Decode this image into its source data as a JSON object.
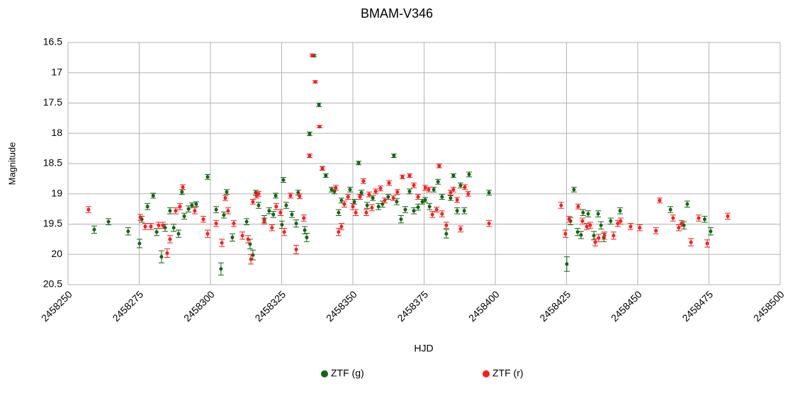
{
  "chart_data": {
    "type": "scatter",
    "title": "BMAM-V346",
    "xlabel": "HJD",
    "ylabel": "Magnitude",
    "xlim": [
      2458250,
      2458500
    ],
    "xticks": [
      2458250,
      2458275,
      2458300,
      2458325,
      2458350,
      2458375,
      2458400,
      2458425,
      2458450,
      2458475,
      2458500
    ],
    "ylim": [
      16.5,
      20.5
    ],
    "yticks": [
      16.5,
      17.0,
      17.5,
      18.0,
      18.5,
      19.0,
      19.5,
      20.0,
      20.5
    ],
    "y_inverted": true,
    "grid": true,
    "legend": "bottom",
    "series": [
      {
        "name": "ZTF (g)",
        "color": "#116611",
        "x": [
          2458259.2,
          2458264.2,
          2458271.1,
          2458275.1,
          2458275.9,
          2458277.9,
          2458279.9,
          2458281.1,
          2458282.8,
          2458284.1,
          2458285.8,
          2458287.1,
          2458288.8,
          2458290.0,
          2458290.8,
          2458292.3,
          2458293.5,
          2458295.0,
          2458299.0,
          2458302.0,
          2458303.7,
          2458304.7,
          2458305.7,
          2458307.7,
          2458312.7,
          2458313.9,
          2458314.9,
          2458315.9,
          2458316.9,
          2458318.9,
          2458320.6,
          2458322.1,
          2458322.9,
          2458325.1,
          2458325.6,
          2458326.6,
          2458328.6,
          2458330.1,
          2458330.8,
          2458333.1,
          2458333.8,
          2458334.8,
          2458336.3,
          2458338.1,
          2458339.3,
          2458340.5,
          2458342.5,
          2458343.5,
          2458345.0,
          2458346.0,
          2458347.0,
          2458349.0,
          2458350.5,
          2458352.0,
          2458353.0,
          2458355.0,
          2458357.0,
          2458359.0,
          2458360.4,
          2458362.4,
          2458364.4,
          2458365.4,
          2458366.9,
          2458368.4,
          2458369.9,
          2458371.4,
          2458372.9,
          2458374.4,
          2458375.4,
          2458376.9,
          2458378.4,
          2458379.9,
          2458381.3,
          2458382.8,
          2458384.3,
          2458385.3,
          2458386.6,
          2458387.8,
          2458389.1,
          2458390.8,
          2458397.8,
          2458425.1,
          2458426.4,
          2458427.6,
          2458428.9,
          2458430.1,
          2458430.8,
          2458432.6,
          2458434.6,
          2458436.1,
          2458437.1,
          2458438.1,
          2458440.5,
          2458443.8,
          2458461.5,
          2458466.2,
          2458467.4,
          2458473.5,
          2458475.6
        ],
        "values": [
          19.59,
          19.46,
          19.62,
          19.82,
          19.42,
          19.21,
          19.03,
          19.63,
          20.04,
          19.56,
          19.28,
          19.56,
          19.66,
          18.97,
          19.37,
          19.25,
          19.19,
          19.17,
          18.72,
          19.26,
          20.24,
          19.35,
          18.97,
          19.72,
          19.46,
          19.83,
          20.01,
          18.98,
          19.19,
          19.42,
          19.28,
          19.34,
          19.03,
          19.51,
          18.77,
          19.19,
          19.34,
          19.49,
          18.98,
          19.6,
          19.72,
          18.01,
          16.72,
          17.53,
          18.58,
          18.7,
          18.93,
          18.96,
          19.31,
          19.11,
          19.17,
          18.93,
          19.13,
          18.49,
          18.98,
          19.19,
          19.07,
          19.21,
          19.17,
          19.05,
          18.37,
          19.13,
          19.42,
          19.26,
          18.96,
          19.28,
          19.22,
          19.13,
          19.1,
          19.21,
          18.93,
          18.8,
          19.05,
          19.66,
          19.07,
          18.7,
          19.28,
          18.86,
          19.28,
          18.68,
          18.98,
          20.16,
          19.45,
          18.93,
          19.63,
          19.68,
          19.31,
          19.33,
          19.69,
          19.33,
          19.52,
          19.72,
          19.45,
          19.28,
          19.26,
          19.52,
          19.17,
          19.42,
          19.62
        ],
        "errors": [
          0.06,
          0.05,
          0.06,
          0.07,
          0.05,
          0.05,
          0.04,
          0.06,
          0.1,
          0.06,
          0.05,
          0.06,
          0.06,
          0.04,
          0.05,
          0.05,
          0.04,
          0.04,
          0.04,
          0.05,
          0.1,
          0.05,
          0.04,
          0.06,
          0.05,
          0.08,
          0.08,
          0.04,
          0.05,
          0.06,
          0.05,
          0.05,
          0.04,
          0.06,
          0.04,
          0.05,
          0.05,
          0.06,
          0.04,
          0.06,
          0.07,
          0.03,
          0.02,
          0.03,
          0.03,
          0.03,
          0.04,
          0.04,
          0.05,
          0.04,
          0.05,
          0.04,
          0.04,
          0.03,
          0.04,
          0.05,
          0.04,
          0.05,
          0.05,
          0.04,
          0.03,
          0.05,
          0.06,
          0.05,
          0.04,
          0.05,
          0.05,
          0.04,
          0.04,
          0.05,
          0.04,
          0.04,
          0.04,
          0.07,
          0.04,
          0.03,
          0.05,
          0.04,
          0.05,
          0.04,
          0.04,
          0.12,
          0.06,
          0.04,
          0.06,
          0.06,
          0.05,
          0.05,
          0.07,
          0.05,
          0.06,
          0.07,
          0.05,
          0.05,
          0.05,
          0.06,
          0.05,
          0.05,
          0.06
        ]
      },
      {
        "name": "ZTF (r)",
        "color": "#ff1a1a",
        "x": [
          2458257.2,
          2458275.4,
          2458277.1,
          2458279.1,
          2458281.8,
          2458283.3,
          2458284.8,
          2458285.8,
          2458287.8,
          2458289.3,
          2458290.3,
          2458294.5,
          2458297.5,
          2458299.0,
          2458302.0,
          2458304.0,
          2458305.2,
          2458306.2,
          2458308.2,
          2458311.2,
          2458313.2,
          2458314.2,
          2458314.9,
          2458316.2,
          2458316.9,
          2458318.9,
          2458321.6,
          2458323.1,
          2458324.6,
          2458325.9,
          2458328.1,
          2458330.1,
          2458331.3,
          2458332.8,
          2458334.8,
          2458335.8,
          2458336.8,
          2458338.3,
          2458339.3,
          2458344.0,
          2458345.0,
          2458346.0,
          2458347.0,
          2458348.3,
          2458350.0,
          2458351.0,
          2458352.5,
          2458353.7,
          2458354.7,
          2458355.7,
          2458356.7,
          2458358.0,
          2458359.7,
          2458361.2,
          2458362.7,
          2458364.2,
          2458365.6,
          2458367.4,
          2458369.9,
          2458371.4,
          2458372.9,
          2458375.4,
          2458376.6,
          2458377.9,
          2458379.4,
          2458380.3,
          2458381.3,
          2458382.8,
          2458384.3,
          2458385.3,
          2458386.6,
          2458387.8,
          2458389.3,
          2458390.5,
          2458397.8,
          2458423.1,
          2458424.6,
          2458425.9,
          2458429.1,
          2458430.6,
          2458432.1,
          2458433.3,
          2458435.1,
          2458436.3,
          2458438.3,
          2458441.5,
          2458443.0,
          2458444.0,
          2458447.5,
          2458450.7,
          2458456.4,
          2458457.7,
          2458462.4,
          2458464.4,
          2458465.4,
          2458468.7,
          2458471.4,
          2458474.4,
          2458481.6
        ],
        "values": [
          19.26,
          19.39,
          19.54,
          19.54,
          19.52,
          19.52,
          19.98,
          19.75,
          19.28,
          19.21,
          18.89,
          19.28,
          19.42,
          19.66,
          19.49,
          19.81,
          19.07,
          19.28,
          19.49,
          19.69,
          19.75,
          20.08,
          19.13,
          19.03,
          19.0,
          19.45,
          19.56,
          19.21,
          19.31,
          19.63,
          19.03,
          19.92,
          19.04,
          19.4,
          18.37,
          16.71,
          17.15,
          17.89,
          18.58,
          18.9,
          19.63,
          19.54,
          19.17,
          19.05,
          19.21,
          19.31,
          19.05,
          18.79,
          19.31,
          19.01,
          19.23,
          18.96,
          18.91,
          19.11,
          18.82,
          19.07,
          18.97,
          18.72,
          18.7,
          18.86,
          19.05,
          18.9,
          18.93,
          19.34,
          19.26,
          18.54,
          19.33,
          19.52,
          18.98,
          18.93,
          19.1,
          19.58,
          18.89,
          19.0,
          19.49,
          19.19,
          19.66,
          19.42,
          19.21,
          19.45,
          19.54,
          19.52,
          19.8,
          19.73,
          19.69,
          19.69,
          19.49,
          19.45,
          19.54,
          19.56,
          19.61,
          19.11,
          19.4,
          19.56,
          19.49,
          19.8,
          19.4,
          19.82,
          19.37
        ],
        "errors": [
          0.05,
          0.05,
          0.05,
          0.05,
          0.05,
          0.05,
          0.07,
          0.06,
          0.05,
          0.05,
          0.04,
          0.05,
          0.05,
          0.06,
          0.05,
          0.06,
          0.04,
          0.05,
          0.05,
          0.06,
          0.06,
          0.08,
          0.04,
          0.04,
          0.04,
          0.05,
          0.05,
          0.05,
          0.05,
          0.06,
          0.04,
          0.07,
          0.04,
          0.05,
          0.03,
          0.02,
          0.02,
          0.02,
          0.03,
          0.04,
          0.06,
          0.05,
          0.05,
          0.04,
          0.05,
          0.05,
          0.04,
          0.04,
          0.05,
          0.04,
          0.05,
          0.04,
          0.04,
          0.04,
          0.04,
          0.04,
          0.04,
          0.03,
          0.03,
          0.04,
          0.04,
          0.04,
          0.04,
          0.05,
          0.04,
          0.03,
          0.05,
          0.05,
          0.04,
          0.04,
          0.04,
          0.05,
          0.04,
          0.04,
          0.05,
          0.05,
          0.06,
          0.05,
          0.04,
          0.05,
          0.05,
          0.05,
          0.06,
          0.06,
          0.06,
          0.06,
          0.05,
          0.05,
          0.05,
          0.05,
          0.05,
          0.04,
          0.05,
          0.05,
          0.05,
          0.06,
          0.05,
          0.06,
          0.05
        ]
      }
    ]
  }
}
